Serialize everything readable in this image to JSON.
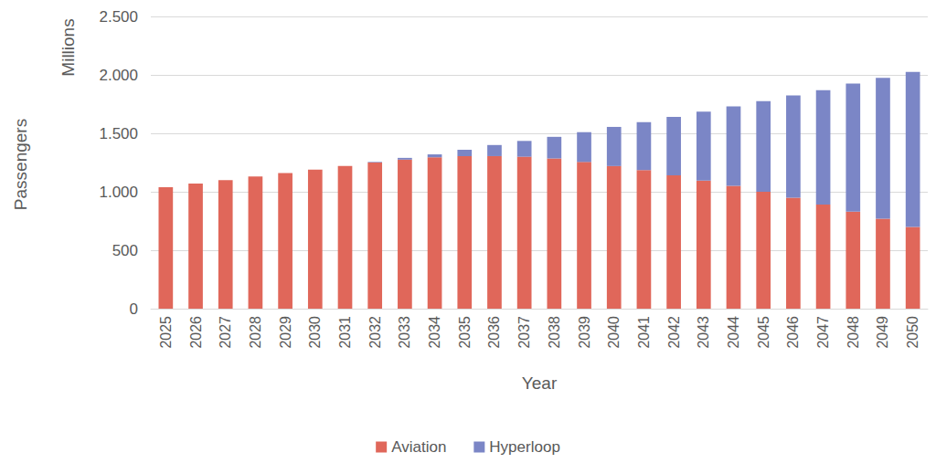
{
  "chart_data": {
    "type": "bar",
    "stacked": true,
    "grid": true,
    "legend": "bottom",
    "data_labels": false,
    "x_label": "Year",
    "y_label": "Passengers",
    "y_units": "Millions",
    "categories": [
      "2025",
      "2026",
      "2027",
      "2028",
      "2029",
      "2030",
      "2031",
      "2032",
      "2033",
      "2034",
      "2035",
      "2036",
      "2037",
      "2038",
      "2039",
      "2040",
      "2041",
      "2042",
      "2043",
      "2044",
      "2045",
      "2046",
      "2047",
      "2048",
      "2049",
      "2050"
    ],
    "series": [
      {
        "name": "Aviation",
        "color": "#e0675a",
        "values": [
          1040,
          1070,
          1100,
          1130,
          1160,
          1190,
          1220,
          1250,
          1275,
          1295,
          1305,
          1305,
          1300,
          1285,
          1255,
          1220,
          1185,
          1140,
          1095,
          1050,
          1000,
          950,
          890,
          830,
          770,
          700
        ]
      },
      {
        "name": "Hyperloop",
        "color": "#7b86c6",
        "values": [
          0,
          0,
          0,
          0,
          0,
          0,
          0,
          5,
          15,
          25,
          55,
          95,
          135,
          185,
          255,
          335,
          410,
          500,
          590,
          680,
          775,
          875,
          980,
          1095,
          1205,
          1325
        ]
      }
    ],
    "ylim": [
      0,
      2500
    ],
    "yticks": [
      0,
      500,
      {
        "value": 1000,
        "label": "1.000"
      },
      {
        "value": 1500,
        "label": "1.500"
      },
      {
        "value": 2000,
        "label": "2.000"
      },
      {
        "value": 2500,
        "label": "2.500"
      }
    ]
  }
}
